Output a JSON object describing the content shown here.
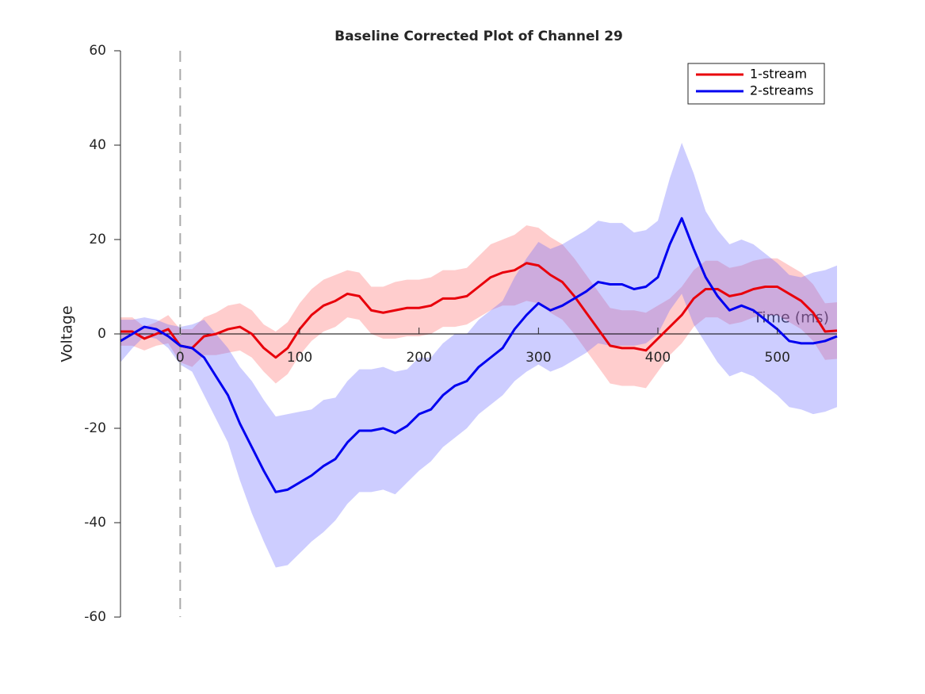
{
  "chart_data": {
    "type": "line",
    "title": "Baseline Corrected Plot of Channel 29",
    "x_label": "Time (ms)",
    "y_label": "Voltage",
    "x": [
      -50,
      -40,
      -30,
      -20,
      -10,
      0,
      10,
      20,
      30,
      40,
      50,
      60,
      70,
      80,
      90,
      100,
      110,
      120,
      130,
      140,
      150,
      160,
      170,
      180,
      190,
      200,
      210,
      220,
      230,
      240,
      250,
      260,
      270,
      280,
      290,
      300,
      310,
      320,
      330,
      340,
      350,
      360,
      370,
      380,
      390,
      400,
      410,
      420,
      430,
      440,
      450,
      460,
      470,
      480,
      490,
      500,
      510,
      520,
      530,
      540,
      550
    ],
    "series": [
      {
        "name": "1-stream",
        "color": "#e8000b",
        "band_color": "#ff6666",
        "values": [
          0.5,
          0.5,
          -1,
          0,
          1,
          -2.5,
          -3,
          -0.5,
          0,
          1,
          1.5,
          0,
          -3,
          -5,
          -3,
          1,
          4,
          6,
          7,
          8.5,
          8,
          5,
          4.5,
          5,
          5.5,
          5.5,
          6,
          7.5,
          7.5,
          8,
          10,
          12,
          13,
          13.5,
          15,
          14.5,
          12.5,
          11,
          8,
          4.5,
          1,
          -2.5,
          -3,
          -3,
          -3.5,
          -1,
          1.5,
          4,
          7.5,
          9.5,
          9.5,
          8,
          8.5,
          9.5,
          10,
          10,
          8.5,
          7,
          4.5,
          0.5,
          0.7
        ],
        "band": [
          3,
          3,
          2.5,
          2.5,
          3,
          3.5,
          4,
          4,
          4.5,
          5,
          5,
          5,
          5,
          5.5,
          5.5,
          5.5,
          5.5,
          5.5,
          5.5,
          5,
          5,
          5,
          5.5,
          6,
          6,
          6,
          6,
          6,
          6,
          6,
          6.5,
          7,
          7,
          7.5,
          8,
          8,
          8,
          8,
          8,
          8,
          8,
          8,
          8,
          8,
          8,
          7,
          6,
          6,
          6,
          6,
          6,
          6,
          6,
          6,
          6,
          6,
          6,
          6,
          6,
          6,
          6
        ]
      },
      {
        "name": "2-streams",
        "color": "#0000f0",
        "band_color": "#6666ff",
        "values": [
          -1.5,
          0,
          1.5,
          1,
          -0.5,
          -2.5,
          -3,
          -5,
          -9,
          -13,
          -19,
          -24,
          -29,
          -33.5,
          -33,
          -31.5,
          -30,
          -28,
          -26.5,
          -23,
          -20.5,
          -20.5,
          -20,
          -21,
          -19.5,
          -17,
          -16,
          -13,
          -11,
          -10,
          -7,
          -5,
          -3,
          1,
          4,
          6.5,
          5,
          6,
          7.5,
          9,
          11,
          10.5,
          10.5,
          9.5,
          10,
          12,
          19,
          24.5,
          18,
          12,
          8,
          5,
          6,
          5,
          3,
          1,
          -1.5,
          -2,
          -2,
          -1.5,
          -0.5
        ],
        "band": [
          4.5,
          3,
          2,
          2,
          2.5,
          4,
          5,
          8,
          9,
          10,
          12,
          14,
          15,
          16,
          16,
          15,
          14,
          14,
          13,
          13,
          13,
          13,
          13,
          13,
          12,
          12,
          11,
          11,
          11,
          10,
          10,
          10,
          10,
          11,
          12,
          13,
          13,
          13,
          13,
          13,
          13,
          13,
          13,
          12,
          12,
          12,
          14,
          16,
          16,
          14,
          14,
          14,
          14,
          14,
          14,
          14,
          14,
          14,
          15,
          15,
          15
        ]
      }
    ],
    "xlim": [
      -50,
      550
    ],
    "ylim": [
      -60,
      60
    ],
    "xticks": [
      0,
      100,
      200,
      300,
      400,
      500
    ],
    "yticks": [
      -60,
      -40,
      -20,
      0,
      20,
      40,
      60
    ],
    "event_line": 0,
    "legend": "upper right"
  }
}
